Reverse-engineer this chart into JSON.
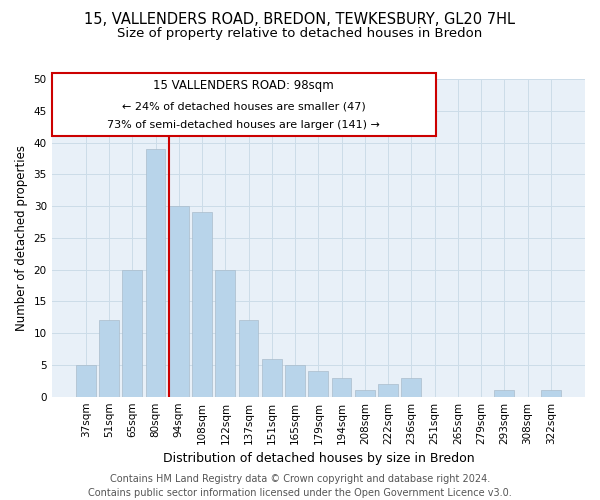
{
  "title": "15, VALLENDERS ROAD, BREDON, TEWKESBURY, GL20 7HL",
  "subtitle": "Size of property relative to detached houses in Bredon",
  "xlabel": "Distribution of detached houses by size in Bredon",
  "ylabel": "Number of detached properties",
  "categories": [
    "37sqm",
    "51sqm",
    "65sqm",
    "80sqm",
    "94sqm",
    "108sqm",
    "122sqm",
    "137sqm",
    "151sqm",
    "165sqm",
    "179sqm",
    "194sqm",
    "208sqm",
    "222sqm",
    "236sqm",
    "251sqm",
    "265sqm",
    "279sqm",
    "293sqm",
    "308sqm",
    "322sqm"
  ],
  "values": [
    5,
    12,
    20,
    39,
    30,
    29,
    20,
    12,
    6,
    5,
    4,
    3,
    1,
    2,
    3,
    0,
    0,
    0,
    1,
    0,
    1
  ],
  "bar_color": "#b8d4ea",
  "bar_edge_color": "#b8d4ea",
  "highlight_index": 3,
  "highlight_line_color": "#cc0000",
  "ylim": [
    0,
    50
  ],
  "yticks": [
    0,
    5,
    10,
    15,
    20,
    25,
    30,
    35,
    40,
    45,
    50
  ],
  "annotation_title": "15 VALLENDERS ROAD: 98sqm",
  "annotation_line1": "← 24% of detached houses are smaller (47)",
  "annotation_line2": "73% of semi-detached houses are larger (141) →",
  "annotation_box_color": "#ffffff",
  "annotation_box_edgecolor": "#cc0000",
  "footer_line1": "Contains HM Land Registry data © Crown copyright and database right 2024.",
  "footer_line2": "Contains public sector information licensed under the Open Government Licence v3.0.",
  "background_color": "#ffffff",
  "grid_color": "#ccdce8",
  "title_fontsize": 10.5,
  "subtitle_fontsize": 9.5,
  "xlabel_fontsize": 9,
  "ylabel_fontsize": 8.5,
  "tick_fontsize": 7.5,
  "ann_title_fontsize": 8.5,
  "ann_text_fontsize": 8,
  "footer_fontsize": 7
}
